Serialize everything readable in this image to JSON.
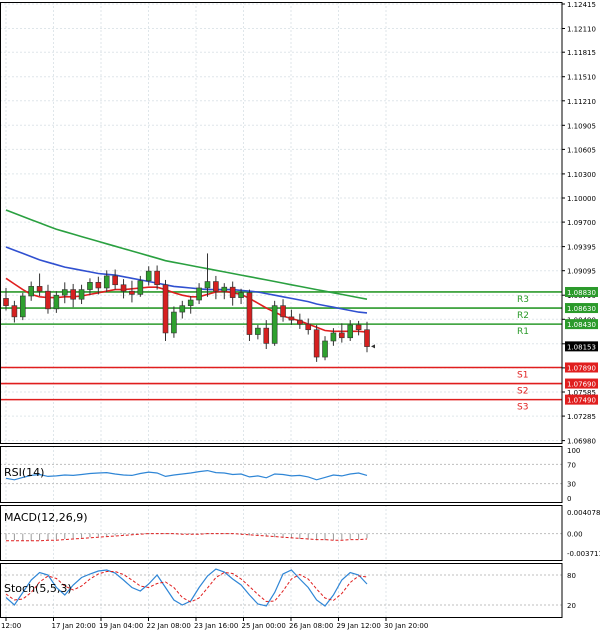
{
  "colors": {
    "grid": "#dfe6ea",
    "frame": "#000000",
    "candle_up": "#2ea02e",
    "candle_down": "#d62020",
    "wick": "#333333",
    "ma_fast": "#e01e1e",
    "ma_mid": "#3050d0",
    "ma_slow": "#2aa040",
    "resistance": "#2b9a2b",
    "support": "#e01e1e",
    "oscillator": "#2f86d6",
    "signal": "#e01e1e"
  },
  "chart_data": [
    {
      "type": "candlestick",
      "name": "main",
      "price_axis_ticks": [
        "1.12415",
        "1.12110",
        "1.11815",
        "1.11510",
        "1.11210",
        "1.10905",
        "1.10605",
        "1.10300",
        "1.10000",
        "1.09700",
        "1.09395",
        "1.09095",
        "1.08790",
        "1.08490",
        "1.08185",
        "1.07885",
        "1.07585",
        "1.07285",
        "1.06980"
      ],
      "ylim": [
        1.0695,
        1.1244
      ],
      "time_axis_labels": [
        "12:00",
        "17 Jan 20:00",
        "19 Jan 04:00",
        "22 Jan 08:00",
        "23 Jan 16:00",
        "25 Jan 00:00",
        "26 Jan 08:00",
        "29 Jan 12:00",
        "30 Jan 20:00"
      ],
      "candles": [
        [
          1.0875,
          1.0888,
          1.086,
          1.0866
        ],
        [
          1.0866,
          1.0872,
          1.0845,
          1.0852
        ],
        [
          1.0852,
          1.0882,
          1.0848,
          1.0878
        ],
        [
          1.0878,
          1.0896,
          1.0872,
          1.089
        ],
        [
          1.089,
          1.0906,
          1.0878,
          1.0884
        ],
        [
          1.0884,
          1.0892,
          1.0856,
          1.0862
        ],
        [
          1.0862,
          1.0884,
          1.0857,
          1.0879
        ],
        [
          1.0879,
          1.0895,
          1.0869,
          1.0886
        ],
        [
          1.0886,
          1.0893,
          1.0864,
          1.0874
        ],
        [
          1.0874,
          1.0892,
          1.0868,
          1.0886
        ],
        [
          1.0886,
          1.09,
          1.0879,
          1.0895
        ],
        [
          1.0895,
          1.0902,
          1.088,
          1.0888
        ],
        [
          1.0888,
          1.091,
          1.0883,
          1.0903
        ],
        [
          1.0903,
          1.0911,
          1.0886,
          1.0892
        ],
        [
          1.0892,
          1.0899,
          1.0875,
          1.0884
        ],
        [
          1.0884,
          1.0897,
          1.087,
          1.088
        ],
        [
          1.088,
          1.0903,
          1.0877,
          1.0897
        ],
        [
          1.0897,
          1.0915,
          1.0891,
          1.0909
        ],
        [
          1.0909,
          1.0916,
          1.0886,
          1.0892
        ],
        [
          1.0892,
          1.0898,
          1.0822,
          1.0832
        ],
        [
          1.0832,
          1.0865,
          1.0826,
          1.0858
        ],
        [
          1.0858,
          1.0872,
          1.085,
          1.0866
        ],
        [
          1.0866,
          1.0878,
          1.0856,
          1.0873
        ],
        [
          1.0873,
          1.0894,
          1.0868,
          1.0888
        ],
        [
          1.0888,
          1.0931,
          1.0877,
          1.0896
        ],
        [
          1.0896,
          1.0903,
          1.0874,
          1.0884
        ],
        [
          1.0884,
          1.0894,
          1.0874,
          1.0889
        ],
        [
          1.0889,
          1.0896,
          1.0866,
          1.0876
        ],
        [
          1.0876,
          1.0887,
          1.0868,
          1.0882
        ],
        [
          1.0882,
          1.0886,
          1.0822,
          1.083
        ],
        [
          1.083,
          1.0842,
          1.0824,
          1.0838
        ],
        [
          1.0838,
          1.0848,
          1.0812,
          1.0819
        ],
        [
          1.0819,
          1.0872,
          1.0816,
          1.0866
        ],
        [
          1.0866,
          1.0874,
          1.0846,
          1.0852
        ],
        [
          1.0852,
          1.0861,
          1.0842,
          1.0848
        ],
        [
          1.0848,
          1.0856,
          1.0837,
          1.0843
        ],
        [
          1.0843,
          1.085,
          1.083,
          1.0836
        ],
        [
          1.0836,
          1.0842,
          1.0796,
          1.0802
        ],
        [
          1.0802,
          1.0828,
          1.0798,
          1.0822
        ],
        [
          1.0822,
          1.0838,
          1.0816,
          1.0832
        ],
        [
          1.0832,
          1.0844,
          1.082,
          1.0826
        ],
        [
          1.0826,
          1.0848,
          1.0822,
          1.0842
        ],
        [
          1.0842,
          1.0847,
          1.0829,
          1.0836
        ],
        [
          1.0836,
          1.0846,
          1.0808,
          1.0815
        ]
      ],
      "ma_fast": [
        1.09,
        1.0893,
        1.0886,
        1.088,
        1.0877,
        1.0876,
        1.0876,
        1.0877,
        1.0877,
        1.0878,
        1.088,
        1.0882,
        1.0884,
        1.0886,
        1.0886,
        1.0887,
        1.0888,
        1.0889,
        1.0889,
        1.0886,
        1.0882,
        1.0879,
        1.0877,
        1.0877,
        1.088,
        1.0883,
        1.0884,
        1.0882,
        1.088,
        1.0875,
        1.0869,
        1.0863,
        1.0858,
        1.0853,
        1.085,
        1.0847,
        1.0843,
        1.0839,
        1.0835,
        1.0834,
        1.0834,
        1.0834,
        1.0834,
        1.0833
      ],
      "ma_mid": [
        1.0939,
        1.0935,
        1.0931,
        1.0927,
        1.0923,
        1.092,
        1.0917,
        1.0914,
        1.0912,
        1.091,
        1.0908,
        1.0906,
        1.0905,
        1.0904,
        1.0902,
        1.09,
        1.0898,
        1.0896,
        1.0894,
        1.0892,
        1.089,
        1.0889,
        1.0888,
        1.0887,
        1.0886,
        1.0886,
        1.0886,
        1.0886,
        1.0885,
        1.0884,
        1.0883,
        1.0881,
        1.0879,
        1.0877,
        1.0875,
        1.0873,
        1.0871,
        1.0868,
        1.0866,
        1.0864,
        1.0862,
        1.086,
        1.0858,
        1.0857
      ],
      "ma_slow": [
        1.0985,
        1.0981,
        1.0977,
        1.0973,
        1.0969,
        1.0965,
        1.0961,
        1.0958,
        1.0955,
        1.0952,
        1.0949,
        1.0946,
        1.0943,
        1.094,
        1.0937,
        1.0934,
        1.0931,
        1.0928,
        1.0925,
        1.0922,
        1.092,
        1.0918,
        1.0916,
        1.0914,
        1.0912,
        1.091,
        1.0908,
        1.0906,
        1.0904,
        1.0902,
        1.09,
        1.0898,
        1.0896,
        1.0894,
        1.0892,
        1.089,
        1.0888,
        1.0886,
        1.0884,
        1.0882,
        1.088,
        1.0878,
        1.0876,
        1.0874
      ],
      "levels": [
        {
          "name": "R3",
          "value": 1.0883,
          "tag": "1.08830",
          "kind": "resistance"
        },
        {
          "name": "R2",
          "value": 1.0863,
          "tag": "1.08630",
          "kind": "resistance"
        },
        {
          "name": "R1",
          "value": 1.0843,
          "tag": "1.08430",
          "kind": "resistance"
        },
        {
          "name": "S1",
          "value": 1.0789,
          "tag": "1.07890",
          "kind": "support"
        },
        {
          "name": "S2",
          "value": 1.0769,
          "tag": "1.07690",
          "kind": "support"
        },
        {
          "name": "S3",
          "value": 1.0749,
          "tag": "1.07490",
          "kind": "support"
        }
      ],
      "current_price": {
        "value": 1.08153,
        "tag": "1.08153"
      }
    },
    {
      "type": "line",
      "name": "RSI(14)",
      "label": "RSI(14)",
      "ticks": [
        "100",
        "70",
        "30",
        "0"
      ],
      "levels": [
        70,
        30
      ],
      "ylim": [
        0,
        100
      ],
      "values": [
        41,
        38,
        43,
        47,
        49,
        45,
        46,
        48,
        47,
        49,
        51,
        52,
        53,
        50,
        48,
        47,
        51,
        54,
        52,
        45,
        48,
        50,
        52,
        55,
        57,
        53,
        52,
        49,
        50,
        44,
        46,
        42,
        50,
        49,
        46,
        47,
        44,
        38,
        43,
        48,
        46,
        50,
        52,
        47
      ]
    },
    {
      "type": "bar",
      "name": "MACD(12,26,9)",
      "label": "MACD(12,26,9)",
      "ticks": [
        "0.004078",
        "0.00",
        "-0.003711"
      ],
      "ylim": [
        -0.003711,
        0.004078
      ],
      "values": [
        -0.001,
        -0.0011,
        -0.0012,
        -0.0012,
        -0.0011,
        -0.0011,
        -0.001,
        -0.0009,
        -0.0008,
        -0.0007,
        -0.0006,
        -0.0005,
        -0.0004,
        -0.0003,
        -0.0002,
        -0.0001,
        0.0,
        0.0001,
        0.0001,
        0.0,
        -0.0001,
        -0.0001,
        -0.0001,
        0.0,
        0.0001,
        0.0001,
        0.0,
        -0.0001,
        -0.0002,
        -0.0003,
        -0.0004,
        -0.0005,
        -0.0006,
        -0.0007,
        -0.0008,
        -0.0009,
        -0.001,
        -0.0011,
        -0.0011,
        -0.0011,
        -0.001,
        -0.0009,
        -0.0009,
        -0.0008
      ],
      "signal": [
        -0.0012,
        -0.0012,
        -0.0012,
        -0.0012,
        -0.0012,
        -0.0011,
        -0.0011,
        -0.001,
        -0.0009,
        -0.0008,
        -0.0007,
        -0.0006,
        -0.0005,
        -0.0004,
        -0.0003,
        -0.0002,
        -0.0001,
        0.0,
        0.0,
        0.0,
        0.0,
        -0.0001,
        -0.0001,
        -0.0001,
        0.0,
        0.0,
        0.0,
        0.0,
        -0.0001,
        -0.0002,
        -0.0003,
        -0.0004,
        -0.0005,
        -0.0006,
        -0.0007,
        -0.0008,
        -0.0009,
        -0.001,
        -0.001,
        -0.0011,
        -0.0011,
        -0.001,
        -0.001,
        -0.0009
      ]
    },
    {
      "type": "line",
      "name": "Stoch(5,5,3)",
      "label": "Stoch(5,5,3)",
      "ticks": [
        "80",
        "20"
      ],
      "levels": [
        80,
        20
      ],
      "ylim": [
        0,
        100
      ],
      "values": [
        35,
        20,
        45,
        70,
        85,
        80,
        55,
        40,
        60,
        75,
        82,
        88,
        90,
        84,
        70,
        55,
        48,
        62,
        80,
        55,
        30,
        20,
        28,
        55,
        78,
        92,
        86,
        72,
        60,
        40,
        22,
        18,
        45,
        82,
        90,
        72,
        55,
        30,
        18,
        40,
        70,
        85,
        80,
        62
      ],
      "signal": [
        42,
        30,
        32,
        45,
        66,
        78,
        73,
        58,
        50,
        58,
        72,
        82,
        87,
        87,
        81,
        70,
        58,
        55,
        63,
        66,
        55,
        35,
        26,
        34,
        54,
        75,
        85,
        83,
        72,
        57,
        41,
        27,
        28,
        48,
        72,
        81,
        72,
        52,
        34,
        29,
        43,
        65,
        78,
        76
      ]
    }
  ]
}
